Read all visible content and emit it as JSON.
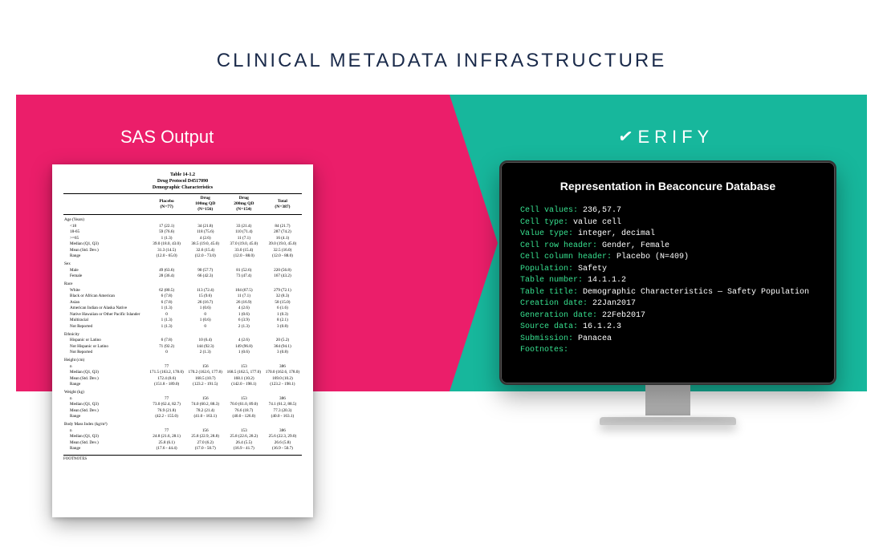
{
  "title": "CLINICAL METADATA INFRASTRUCTURE",
  "left_label": "SAS Output",
  "right_label": "ERIFY",
  "colors": {
    "left_panel": "#eb1e6a",
    "right_panel": "#17b79c",
    "title_color": "#1a2a4a",
    "terminal_key": "#37e08f",
    "terminal_val": "#ffffff",
    "terminal_bg": "#000000",
    "page_bg": "#ffffff"
  },
  "doc": {
    "table_number": "Table 14-1.2",
    "protocol": "Drug Protocol D4517090",
    "title": "Demographic Characteristics",
    "columns": [
      "",
      "Placebo\n(N=77)",
      "Drug\n100mg QD\n(N=156)",
      "Drug\n200mg QD\n(N=154)",
      "Total\n(N=387)"
    ],
    "sections": [
      {
        "header": "Age (Years)",
        "rows": [
          [
            "<18",
            "17 (22.1)",
            "34 (21.8)",
            "33 (21.4)",
            "84 (21.7)"
          ],
          [
            "18-65",
            "59 (76.6)",
            "118 (75.6)",
            "110 (71.4)",
            "287 (74.2)"
          ],
          [
            ">=65",
            "1 (1.3)",
            "4 (2.6)",
            "11 (7.1)",
            "16 (4.1)"
          ],
          [
            "Median (Q1, Q3)",
            "39.0 (18.0, 43.0)",
            "38.5 (19.0, 45.0)",
            "37.0 (19.0, 45.0)",
            "39.0 (19.0, 45.0)"
          ],
          [
            "Mean (Std. Dev.)",
            "31.3 (14.5)",
            "32.6 (15.4)",
            "33.0 (15.4)",
            "32.5 (16.0)"
          ],
          [
            "Range",
            "(12.0 - 65.0)",
            "(12.0 - 73.0)",
            "(12.0 - 88.0)",
            "(12.0 - 88.0)"
          ]
        ]
      },
      {
        "header": "Sex",
        "rows": [
          [
            "Male",
            "49 (63.6)",
            "90 (57.7)",
            "81 (52.6)",
            "220 (56.8)"
          ],
          [
            "Female",
            "28 (36.4)",
            "66 (42.3)",
            "73 (47.4)",
            "167 (43.2)"
          ]
        ]
      },
      {
        "header": "Race",
        "rows": [
          [
            "White",
            "62 (80.5)",
            "113 (72.4)",
            "104 (67.5)",
            "279 (72.1)"
          ],
          [
            "Black or African American",
            "6 (7.8)",
            "15 (9.6)",
            "11 (7.1)",
            "32 (8.3)"
          ],
          [
            "Asian",
            "6 (7.8)",
            "26 (16.7)",
            "26 (16.9)",
            "58 (15.0)"
          ],
          [
            "American Indian or Alaska Native",
            "1 (1.3)",
            "1 (0.6)",
            "4 (2.6)",
            "6 (1.6)"
          ],
          [
            "Native Hawaiian or Other Pacific Islander",
            "0",
            "0",
            "1 (0.6)",
            "1 (0.3)"
          ],
          [
            "Multiracial",
            "1 (1.3)",
            "1 (0.6)",
            "6 (3.9)",
            "8 (2.1)"
          ],
          [
            "Not Reported",
            "1 (1.3)",
            "0",
            "2 (1.3)",
            "3 (0.8)"
          ]
        ]
      },
      {
        "header": "Ethnicity",
        "rows": [
          [
            "Hispanic or Latino",
            "6 (7.8)",
            "10 (6.4)",
            "4 (2.6)",
            "20 (5.2)"
          ],
          [
            "Not Hispanic or Latino",
            "71 (92.2)",
            "144 (92.3)",
            "149 (96.8)",
            "364 (94.1)"
          ],
          [
            "Not Reported",
            "0",
            "2 (1.3)",
            "1 (0.6)",
            "3 (0.8)"
          ]
        ]
      },
      {
        "header": "Height (cm)",
        "rows": [
          [
            "n",
            "77",
            "156",
            "153",
            "386"
          ],
          [
            "Median (Q1, Q3)",
            "171.5 (163.2, 178.0)",
            "170.2 (162.6, 177.8)",
            "168.5 (162.5, 177.0)",
            "170.0 (162.6, 178.0)"
          ],
          [
            "Mean (Std. Dev.)",
            "172.4 (8.6)",
            "168.5 (10.7)",
            "168.1 (10.2)",
            "169.0 (10.2)"
          ],
          [
            "Range",
            "(151.8 - 189.0)",
            "(123.2 - 191.5)",
            "(142.0 - 198.1)",
            "(123.2 - 198.1)"
          ]
        ]
      },
      {
        "header": "Weight (kg)",
        "rows": [
          [
            "n",
            "77",
            "156",
            "153",
            "386"
          ],
          [
            "Median (Q1, Q3)",
            "73.0 (62.4, 82.7)",
            "74.0 (60.2, 88.3)",
            "70.0 (61.0, 89.0)",
            "74.1 (61.2, 88.5)"
          ],
          [
            "Mean (Std. Dev.)",
            "76.9 (21.8)",
            "78.2 (21.4)",
            "76.6 (18.7)",
            "77.3 (20.3)"
          ],
          [
            "Range",
            "(42.2 - 155.0)",
            "(41.0 - 163.1)",
            "(40.0 - 126.0)",
            "(40.0 - 163.1)"
          ]
        ]
      },
      {
        "header": "Body Mass Index (kg/m²)",
        "rows": [
          [
            "n",
            "77",
            "156",
            "153",
            "386"
          ],
          [
            "Median (Q1, Q3)",
            "24.8 (21.6, 28.1)",
            "25.8 (22.9, 28.8)",
            "25.8 (22.6, 28.2)",
            "25.6 (22.3, 29.0)"
          ],
          [
            "Mean (Std. Dev.)",
            "25.8 (6.1)",
            "27.0 (6.2)",
            "26.4 (5.5)",
            "26.6 (5.8)"
          ],
          [
            "Range",
            "(17.6 - 44.4)",
            "(17.0 - 50.7)",
            "(16.9 - 41.7)",
            "(16.9 - 50.7)"
          ]
        ]
      }
    ],
    "footnote_label": "FOOTNOTES"
  },
  "terminal": {
    "title": "Representation in Beaconcure  Database",
    "lines": [
      {
        "k": "Cell values:",
        "v": " 236,57.7"
      },
      {
        "k": "Cell type:",
        "v": "  value cell"
      },
      {
        "k": "Value type:",
        "v": " integer, decimal"
      },
      {
        "k": "Cell row header:",
        "v": " Gender, Female"
      },
      {
        "k": "Cell column header:",
        "v": " Placebo (N=409)"
      },
      {
        "k": "Population:",
        "v": " Safety"
      },
      {
        "k": "Table number:",
        "v": " 14.1.1.2"
      },
      {
        "k": "Table title:",
        "v": " Demographic Characteristics — Safety Population"
      },
      {
        "k": "Creation date:",
        "v": " 22Jan2017"
      },
      {
        "k": "Generation date:",
        "v": " 22Feb2017"
      },
      {
        "k": "Source data:",
        "v": " 16.1.2.3"
      },
      {
        "k": "Submission:",
        "v": " Panacea"
      },
      {
        "k": "Footnotes:",
        "v": ""
      }
    ]
  }
}
